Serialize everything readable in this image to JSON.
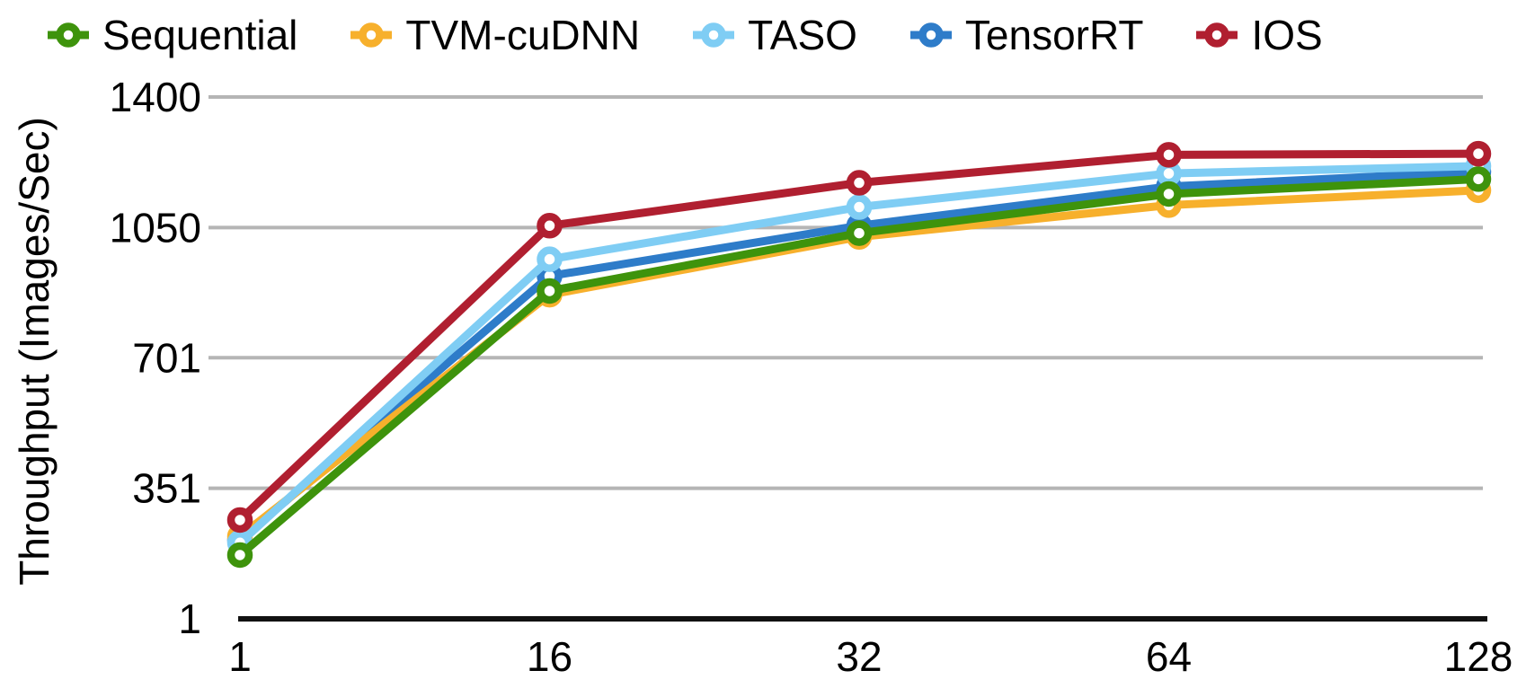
{
  "chart_data": {
    "type": "line",
    "title": "",
    "xlabel": "",
    "ylabel": "Throughput (Images/Sec)",
    "categories": [
      1,
      16,
      32,
      64,
      128
    ],
    "x_tick_labels": [
      "1",
      "16",
      "32",
      "64",
      "128"
    ],
    "y_ticks": [
      {
        "value": 1400,
        "label": "1400"
      },
      {
        "value": 1050,
        "label": "1050"
      },
      {
        "value": 701,
        "label": "701"
      },
      {
        "value": 351,
        "label": "351"
      },
      {
        "value": 1,
        "label": "1"
      }
    ],
    "ylim": [
      1,
      1400
    ],
    "grid": true,
    "legend_position": "top",
    "marker": "ring",
    "grid_color": "#b5b5b5",
    "axis_color": "#111111",
    "series": [
      {
        "name": "Sequential",
        "color": "#3e930c",
        "values": [
          172,
          880,
          1035,
          1140,
          1180
        ]
      },
      {
        "name": "TVM-cuDNN",
        "color": "#f7b02c",
        "values": [
          222,
          870,
          1025,
          1110,
          1150
        ]
      },
      {
        "name": "TASO",
        "color": "#7fcdf4",
        "values": [
          205,
          965,
          1105,
          1195,
          1215
        ]
      },
      {
        "name": "TensorRT",
        "color": "#2e7cc9",
        "values": [
          212,
          920,
          1055,
          1160,
          1200
        ]
      },
      {
        "name": "IOS",
        "color": "#b01f30",
        "values": [
          266,
          1055,
          1170,
          1245,
          1248
        ]
      }
    ]
  }
}
